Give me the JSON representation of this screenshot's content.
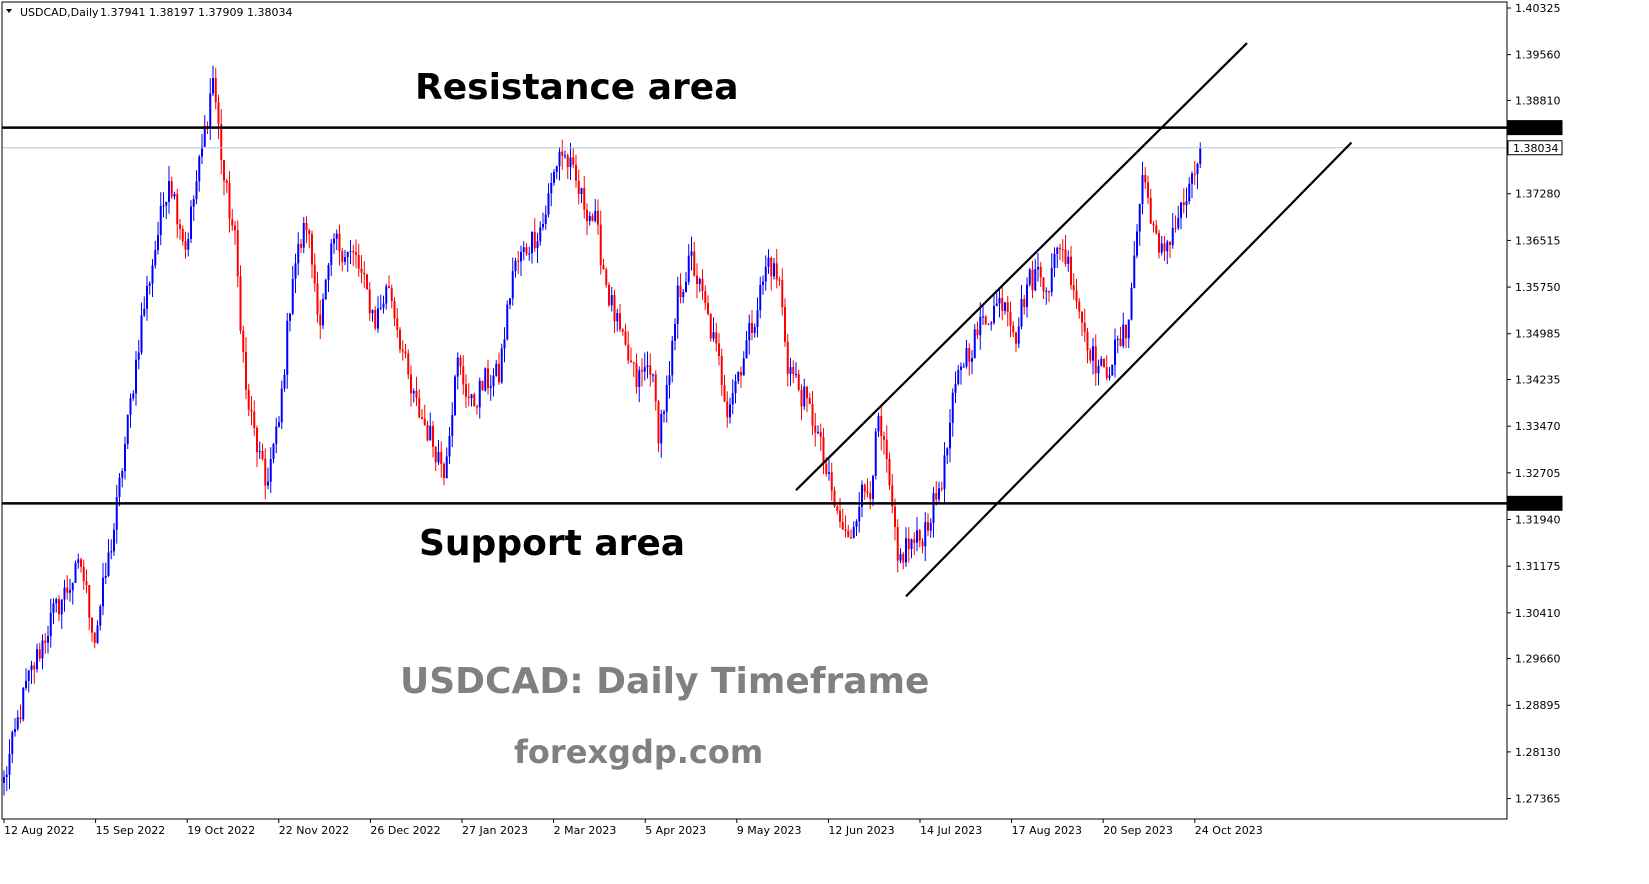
{
  "chart_data": {
    "type": "candlestick",
    "header": {
      "symbol": "USDCAD,Daily",
      "ohlc": "1.37941 1.38197 1.37909 1.38034"
    },
    "price_axis": {
      "labels": [
        "1.40325",
        "1.39560",
        "1.38810",
        "1.37280",
        "1.36515",
        "1.35750",
        "1.34985",
        "1.34235",
        "1.33470",
        "1.32705",
        "1.31940",
        "1.31175",
        "1.30410",
        "1.29660",
        "1.28895",
        "1.28130",
        "1.27365"
      ],
      "range": [
        1.2703,
        1.40325
      ]
    },
    "time_axis": {
      "labels": [
        "12 Aug 2022",
        "15 Sep 2022",
        "19 Oct 2022",
        "22 Nov 2022",
        "26 Dec 2022",
        "27 Jan 2023",
        "2 Mar 2023",
        "5 Apr 2023",
        "9 May 2023",
        "12 Jun 2023",
        "14 Jul 2023",
        "17 Aug 2023",
        "20 Sep 2023",
        "24 Oct 2023"
      ]
    },
    "levels": [
      {
        "name": "resistance",
        "price": 1.38364,
        "label": "1.38364"
      },
      {
        "name": "support",
        "price": 1.32205,
        "label": "1.32205"
      },
      {
        "name": "current",
        "price": 1.38034,
        "label": "1.38034"
      }
    ],
    "annotations": {
      "resistance": "Resistance area",
      "support": "Support area",
      "title": "USDCAD: Daily Timeframe",
      "website": "forexgdp.com"
    },
    "channel": {
      "upper": [
        {
          "date_index": 288,
          "price": 1.3242
        },
        {
          "date_index": 452,
          "price": 1.3975
        }
      ],
      "lower": [
        {
          "date_index": 328,
          "price": 1.3068
        },
        {
          "date_index": 490,
          "price": 1.3812
        }
      ]
    },
    "path": [
      [
        0,
        1.2765
      ],
      [
        8,
        1.292
      ],
      [
        18,
        1.304
      ],
      [
        28,
        1.312
      ],
      [
        33,
        1.3
      ],
      [
        40,
        1.318
      ],
      [
        50,
        1.352
      ],
      [
        60,
        1.376
      ],
      [
        63,
        1.37
      ],
      [
        66,
        1.364
      ],
      [
        72,
        1.38
      ],
      [
        76,
        1.392
      ],
      [
        80,
        1.375
      ],
      [
        84,
        1.365
      ],
      [
        88,
        1.34
      ],
      [
        95,
        1.325
      ],
      [
        100,
        1.335
      ],
      [
        105,
        1.36
      ],
      [
        110,
        1.368
      ],
      [
        115,
        1.352
      ],
      [
        120,
        1.365
      ],
      [
        128,
        1.362
      ],
      [
        135,
        1.352
      ],
      [
        140,
        1.358
      ],
      [
        148,
        1.34
      ],
      [
        155,
        1.333
      ],
      [
        160,
        1.328
      ],
      [
        165,
        1.345
      ],
      [
        170,
        1.338
      ],
      [
        175,
        1.342
      ],
      [
        180,
        1.343
      ],
      [
        185,
        1.36
      ],
      [
        190,
        1.364
      ],
      [
        196,
        1.368
      ],
      [
        202,
        1.38
      ],
      [
        205,
        1.378
      ],
      [
        210,
        1.372
      ],
      [
        215,
        1.368
      ],
      [
        220,
        1.356
      ],
      [
        225,
        1.348
      ],
      [
        230,
        1.342
      ],
      [
        235,
        1.345
      ],
      [
        238,
        1.334
      ],
      [
        242,
        1.342
      ],
      [
        245,
        1.356
      ],
      [
        250,
        1.362
      ],
      [
        255,
        1.354
      ],
      [
        260,
        1.345
      ],
      [
        263,
        1.338
      ],
      [
        268,
        1.345
      ],
      [
        273,
        1.353
      ],
      [
        278,
        1.362
      ],
      [
        282,
        1.358
      ],
      [
        285,
        1.345
      ],
      [
        290,
        1.34
      ],
      [
        295,
        1.335
      ],
      [
        300,
        1.325
      ],
      [
        303,
        1.32
      ],
      [
        307,
        1.3155
      ],
      [
        311,
        1.323
      ],
      [
        315,
        1.325
      ],
      [
        318,
        1.335
      ],
      [
        321,
        1.328
      ],
      [
        325,
        1.312
      ],
      [
        328,
        1.315
      ],
      [
        333,
        1.316
      ],
      [
        338,
        1.3215
      ],
      [
        342,
        1.328
      ],
      [
        345,
        1.338
      ],
      [
        348,
        1.345
      ],
      [
        352,
        1.348
      ],
      [
        356,
        1.352
      ],
      [
        360,
        1.354
      ],
      [
        364,
        1.356
      ],
      [
        368,
        1.35
      ],
      [
        372,
        1.358
      ],
      [
        376,
        1.36
      ],
      [
        380,
        1.358
      ],
      [
        384,
        1.365
      ],
      [
        388,
        1.36
      ],
      [
        392,
        1.352
      ],
      [
        396,
        1.346
      ],
      [
        400,
        1.343
      ],
      [
        404,
        1.347
      ],
      [
        408,
        1.35
      ],
      [
        411,
        1.362
      ],
      [
        414,
        1.376
      ],
      [
        417,
        1.37
      ],
      [
        420,
        1.362
      ],
      [
        423,
        1.365
      ],
      [
        426,
        1.368
      ],
      [
        429,
        1.371
      ],
      [
        432,
        1.374
      ],
      [
        435,
        1.3803
      ]
    ],
    "colors": {
      "up": "#0000ff",
      "down": "#ff0000",
      "levels": "#000000",
      "current": "#b0c4de",
      "watermark": "#808080"
    }
  }
}
